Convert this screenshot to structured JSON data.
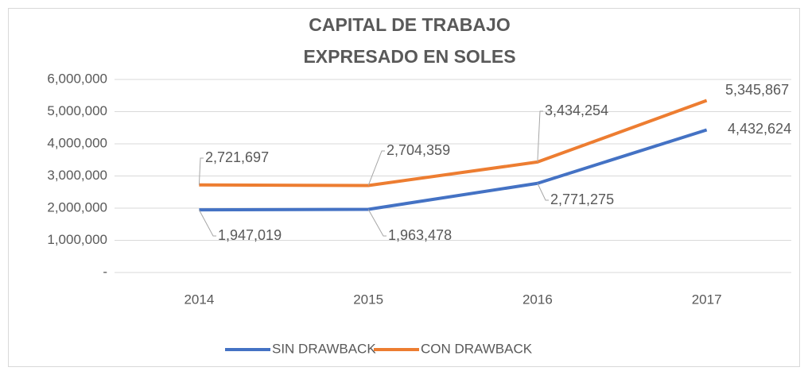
{
  "chart_data": {
    "type": "line",
    "title": "CAPITAL DE TRABAJO",
    "subtitle": "EXPRESADO EN SOLES",
    "categories": [
      "2014",
      "2015",
      "2016",
      "2017"
    ],
    "series": [
      {
        "name": "SIN DRAWBACK",
        "color": "#4472c4",
        "values": [
          1947019,
          1963478,
          2771275,
          4432624
        ],
        "value_labels": [
          "1,947,019",
          "1,963,478",
          "2,771,275",
          "4,432,624"
        ]
      },
      {
        "name": "CON DRAWBACK",
        "color": "#ed7d31",
        "values": [
          2721697,
          2704359,
          3434254,
          5345867
        ],
        "value_labels": [
          "2,721,697",
          "2,704,359",
          "3,434,254",
          "5,345,867"
        ]
      }
    ],
    "ylim": [
      0,
      6000000
    ],
    "yticks": [
      {
        "value": 0,
        "label": "-"
      },
      {
        "value": 1000000,
        "label": "1,000,000"
      },
      {
        "value": 2000000,
        "label": "2,000,000"
      },
      {
        "value": 3000000,
        "label": "3,000,000"
      },
      {
        "value": 4000000,
        "label": "4,000,000"
      },
      {
        "value": 5000000,
        "label": "5,000,000"
      },
      {
        "value": 6000000,
        "label": "6,000,000"
      }
    ],
    "grid": true,
    "legend": "bottom"
  }
}
